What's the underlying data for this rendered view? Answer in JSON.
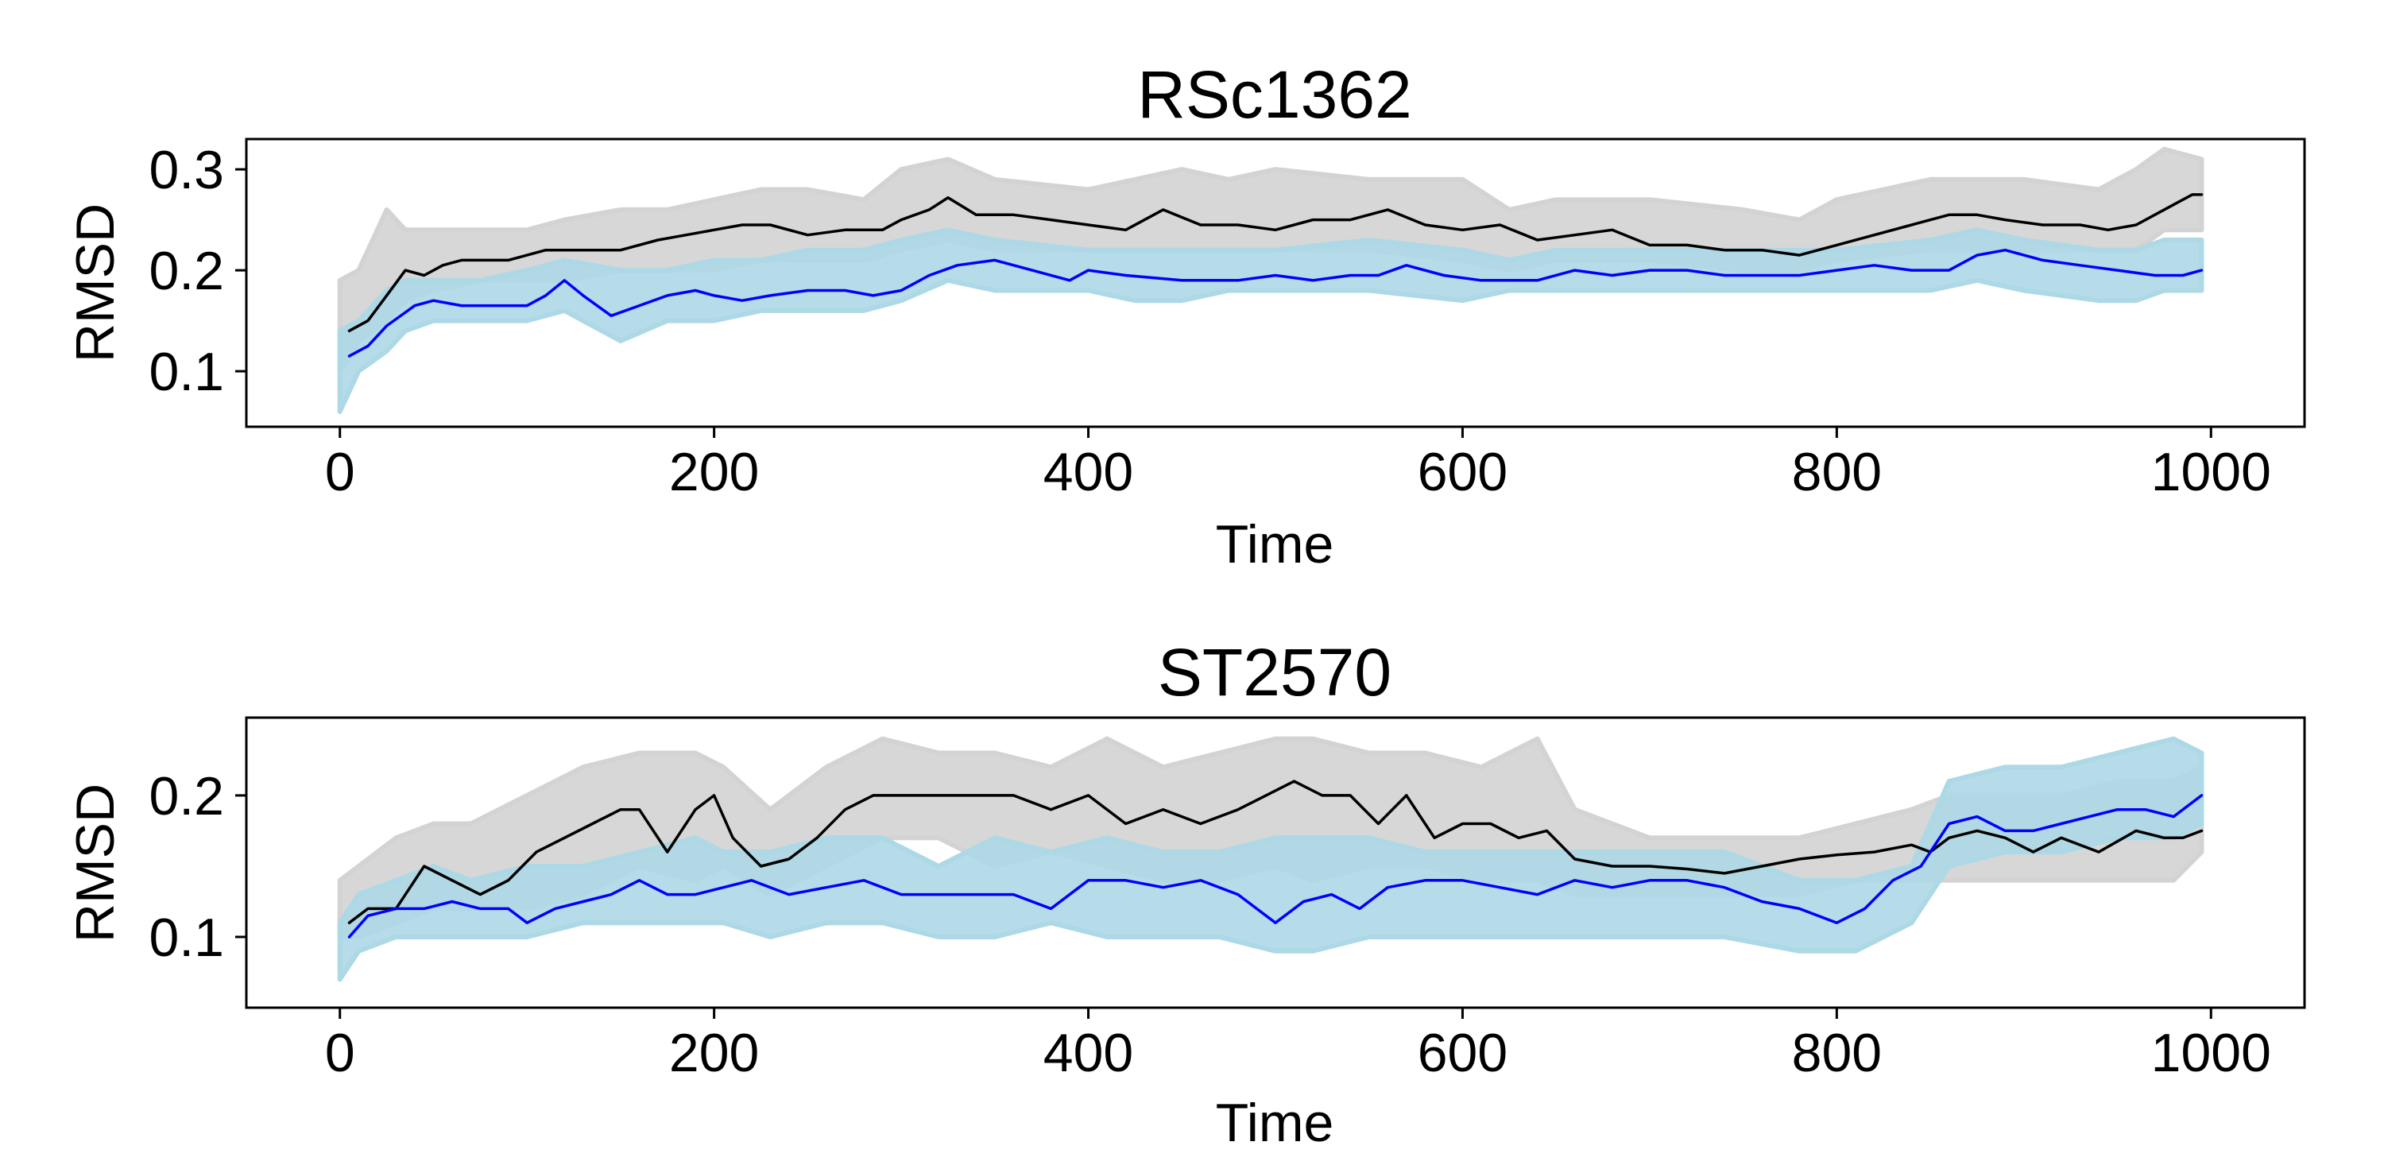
{
  "chart_data": [
    {
      "type": "line",
      "title": "RSc1362",
      "xlabel": "Time",
      "ylabel": "RMSD",
      "xlim": [
        -50,
        1050
      ],
      "ylim": [
        0.045,
        0.33
      ],
      "xticks": [
        0,
        200,
        400,
        600,
        800,
        1000
      ],
      "yticks": [
        0.1,
        0.2,
        0.3
      ],
      "xtick_labels": [
        "0",
        "200",
        "400",
        "600",
        "800",
        "1000"
      ],
      "ytick_labels": [
        "0.1",
        "0.2",
        "0.3"
      ],
      "grid": false,
      "series": [
        {
          "kind": "scatter-band",
          "color": "#d3d3d3",
          "x": [
            0,
            10,
            25,
            35,
            50,
            75,
            100,
            120,
            150,
            175,
            200,
            225,
            250,
            280,
            300,
            325,
            350,
            400,
            425,
            450,
            475,
            500,
            550,
            600,
            625,
            650,
            700,
            750,
            780,
            800,
            850,
            875,
            900,
            940,
            960,
            975,
            995
          ],
          "low": [
            0.1,
            0.13,
            0.15,
            0.17,
            0.18,
            0.19,
            0.19,
            0.19,
            0.2,
            0.2,
            0.2,
            0.21,
            0.21,
            0.21,
            0.22,
            0.23,
            0.22,
            0.22,
            0.22,
            0.22,
            0.22,
            0.22,
            0.22,
            0.21,
            0.2,
            0.21,
            0.21,
            0.2,
            0.2,
            0.21,
            0.22,
            0.22,
            0.22,
            0.22,
            0.22,
            0.24,
            0.24
          ],
          "high": [
            0.19,
            0.2,
            0.26,
            0.24,
            0.24,
            0.24,
            0.24,
            0.25,
            0.26,
            0.26,
            0.27,
            0.28,
            0.28,
            0.27,
            0.3,
            0.31,
            0.29,
            0.28,
            0.29,
            0.3,
            0.29,
            0.3,
            0.29,
            0.29,
            0.26,
            0.27,
            0.27,
            0.26,
            0.25,
            0.27,
            0.29,
            0.29,
            0.29,
            0.28,
            0.3,
            0.32,
            0.31
          ]
        },
        {
          "kind": "scatter-band",
          "color": "#add8e6",
          "x": [
            0,
            10,
            25,
            35,
            50,
            75,
            100,
            120,
            150,
            175,
            200,
            225,
            250,
            280,
            300,
            325,
            350,
            400,
            425,
            450,
            475,
            500,
            550,
            600,
            625,
            650,
            700,
            750,
            780,
            800,
            850,
            875,
            900,
            940,
            960,
            975,
            995
          ],
          "low": [
            0.06,
            0.1,
            0.12,
            0.14,
            0.15,
            0.15,
            0.15,
            0.16,
            0.13,
            0.15,
            0.15,
            0.16,
            0.16,
            0.16,
            0.17,
            0.19,
            0.18,
            0.18,
            0.17,
            0.17,
            0.18,
            0.18,
            0.18,
            0.17,
            0.18,
            0.18,
            0.18,
            0.18,
            0.18,
            0.18,
            0.18,
            0.19,
            0.18,
            0.17,
            0.17,
            0.18,
            0.18
          ],
          "high": [
            0.14,
            0.15,
            0.18,
            0.19,
            0.19,
            0.19,
            0.2,
            0.21,
            0.2,
            0.2,
            0.21,
            0.21,
            0.22,
            0.22,
            0.23,
            0.24,
            0.23,
            0.22,
            0.22,
            0.22,
            0.22,
            0.22,
            0.23,
            0.22,
            0.21,
            0.22,
            0.22,
            0.22,
            0.22,
            0.22,
            0.23,
            0.24,
            0.23,
            0.22,
            0.22,
            0.23,
            0.23
          ]
        },
        {
          "kind": "line",
          "color": "#000000",
          "x": [
            5,
            15,
            25,
            35,
            45,
            55,
            65,
            75,
            90,
            100,
            110,
            130,
            150,
            170,
            185,
            200,
            215,
            230,
            250,
            270,
            290,
            300,
            315,
            325,
            340,
            360,
            380,
            400,
            420,
            440,
            460,
            480,
            500,
            520,
            540,
            560,
            580,
            600,
            620,
            640,
            660,
            680,
            700,
            720,
            740,
            760,
            780,
            800,
            820,
            840,
            860,
            875,
            890,
            910,
            930,
            945,
            960,
            975,
            990,
            995
          ],
          "y": [
            0.14,
            0.15,
            0.175,
            0.2,
            0.195,
            0.205,
            0.21,
            0.21,
            0.21,
            0.215,
            0.22,
            0.22,
            0.22,
            0.23,
            0.235,
            0.24,
            0.245,
            0.245,
            0.235,
            0.24,
            0.24,
            0.25,
            0.26,
            0.272,
            0.255,
            0.255,
            0.25,
            0.245,
            0.24,
            0.26,
            0.245,
            0.245,
            0.24,
            0.25,
            0.25,
            0.26,
            0.245,
            0.24,
            0.245,
            0.23,
            0.235,
            0.24,
            0.225,
            0.225,
            0.22,
            0.22,
            0.215,
            0.225,
            0.235,
            0.245,
            0.255,
            0.255,
            0.25,
            0.245,
            0.245,
            0.24,
            0.245,
            0.26,
            0.275,
            0.275
          ]
        },
        {
          "kind": "line",
          "color": "#0000ff",
          "x": [
            5,
            15,
            25,
            40,
            50,
            65,
            80,
            100,
            110,
            120,
            130,
            145,
            160,
            175,
            190,
            200,
            215,
            230,
            250,
            270,
            285,
            300,
            315,
            330,
            350,
            370,
            390,
            400,
            420,
            450,
            480,
            500,
            520,
            540,
            555,
            570,
            590,
            610,
            640,
            660,
            680,
            700,
            720,
            740,
            760,
            780,
            800,
            820,
            840,
            860,
            875,
            890,
            910,
            930,
            950,
            970,
            985,
            995
          ],
          "y": [
            0.115,
            0.125,
            0.145,
            0.165,
            0.17,
            0.165,
            0.165,
            0.165,
            0.175,
            0.19,
            0.175,
            0.155,
            0.165,
            0.175,
            0.18,
            0.175,
            0.17,
            0.175,
            0.18,
            0.18,
            0.175,
            0.18,
            0.195,
            0.205,
            0.21,
            0.2,
            0.19,
            0.2,
            0.195,
            0.19,
            0.19,
            0.195,
            0.19,
            0.195,
            0.195,
            0.205,
            0.195,
            0.19,
            0.19,
            0.2,
            0.195,
            0.2,
            0.2,
            0.195,
            0.195,
            0.195,
            0.2,
            0.205,
            0.2,
            0.2,
            0.215,
            0.22,
            0.21,
            0.205,
            0.2,
            0.195,
            0.195,
            0.2
          ]
        }
      ]
    },
    {
      "type": "line",
      "title": "ST2570",
      "xlabel": "Time",
      "ylabel": "RMSD",
      "xlim": [
        -50,
        1050
      ],
      "ylim": [
        0.05,
        0.255
      ],
      "xticks": [
        0,
        200,
        400,
        600,
        800,
        1000
      ],
      "yticks": [
        0.1,
        0.2
      ],
      "xtick_labels": [
        "0",
        "200",
        "400",
        "600",
        "800",
        "1000"
      ],
      "ytick_labels": [
        "0.1",
        "0.2"
      ],
      "grid": false,
      "series": [
        {
          "kind": "scatter-band",
          "color": "#d3d3d3",
          "x": [
            0,
            10,
            30,
            50,
            70,
            100,
            130,
            160,
            190,
            205,
            230,
            260,
            290,
            320,
            350,
            380,
            410,
            440,
            470,
            500,
            520,
            550,
            580,
            610,
            640,
            660,
            700,
            740,
            780,
            810,
            840,
            860,
            890,
            920,
            950,
            980,
            995
          ],
          "low": [
            0.1,
            0.1,
            0.11,
            0.12,
            0.12,
            0.12,
            0.13,
            0.15,
            0.14,
            0.15,
            0.13,
            0.15,
            0.17,
            0.17,
            0.15,
            0.16,
            0.15,
            0.14,
            0.14,
            0.15,
            0.14,
            0.15,
            0.15,
            0.14,
            0.14,
            0.13,
            0.13,
            0.13,
            0.13,
            0.14,
            0.14,
            0.14,
            0.14,
            0.14,
            0.14,
            0.14,
            0.16
          ],
          "high": [
            0.14,
            0.15,
            0.17,
            0.18,
            0.18,
            0.2,
            0.22,
            0.23,
            0.23,
            0.22,
            0.19,
            0.22,
            0.24,
            0.23,
            0.23,
            0.22,
            0.24,
            0.22,
            0.23,
            0.24,
            0.24,
            0.23,
            0.23,
            0.22,
            0.24,
            0.19,
            0.17,
            0.17,
            0.17,
            0.18,
            0.19,
            0.2,
            0.2,
            0.2,
            0.21,
            0.21,
            0.22
          ]
        },
        {
          "kind": "scatter-band",
          "color": "#add8e6",
          "x": [
            0,
            10,
            30,
            50,
            70,
            100,
            130,
            160,
            190,
            205,
            230,
            260,
            290,
            320,
            350,
            380,
            410,
            440,
            470,
            500,
            520,
            550,
            580,
            610,
            640,
            660,
            700,
            740,
            780,
            810,
            840,
            860,
            890,
            920,
            950,
            980,
            995
          ],
          "low": [
            0.07,
            0.09,
            0.1,
            0.1,
            0.1,
            0.1,
            0.11,
            0.11,
            0.11,
            0.11,
            0.1,
            0.11,
            0.11,
            0.1,
            0.1,
            0.11,
            0.1,
            0.1,
            0.1,
            0.09,
            0.09,
            0.1,
            0.1,
            0.1,
            0.1,
            0.1,
            0.1,
            0.1,
            0.09,
            0.09,
            0.11,
            0.15,
            0.16,
            0.16,
            0.17,
            0.17,
            0.18
          ],
          "high": [
            0.11,
            0.13,
            0.14,
            0.15,
            0.14,
            0.15,
            0.15,
            0.16,
            0.17,
            0.16,
            0.16,
            0.17,
            0.17,
            0.15,
            0.17,
            0.16,
            0.17,
            0.16,
            0.16,
            0.17,
            0.17,
            0.17,
            0.16,
            0.16,
            0.16,
            0.16,
            0.16,
            0.16,
            0.14,
            0.14,
            0.15,
            0.21,
            0.22,
            0.22,
            0.23,
            0.24,
            0.23
          ]
        },
        {
          "kind": "line",
          "color": "#000000",
          "x": [
            5,
            15,
            30,
            45,
            60,
            75,
            90,
            105,
            120,
            135,
            150,
            160,
            175,
            190,
            200,
            210,
            225,
            240,
            255,
            270,
            285,
            300,
            320,
            340,
            360,
            380,
            400,
            420,
            440,
            460,
            480,
            495,
            510,
            525,
            540,
            555,
            570,
            585,
            600,
            615,
            630,
            645,
            660,
            680,
            700,
            720,
            740,
            760,
            780,
            800,
            820,
            840,
            850,
            860,
            875,
            890,
            905,
            920,
            940,
            960,
            975,
            985,
            995
          ],
          "y": [
            0.11,
            0.12,
            0.12,
            0.15,
            0.14,
            0.13,
            0.14,
            0.16,
            0.17,
            0.18,
            0.19,
            0.19,
            0.16,
            0.19,
            0.2,
            0.17,
            0.15,
            0.155,
            0.17,
            0.19,
            0.2,
            0.2,
            0.2,
            0.2,
            0.2,
            0.19,
            0.2,
            0.18,
            0.19,
            0.18,
            0.19,
            0.2,
            0.21,
            0.2,
            0.2,
            0.18,
            0.2,
            0.17,
            0.18,
            0.18,
            0.17,
            0.175,
            0.155,
            0.15,
            0.15,
            0.148,
            0.145,
            0.15,
            0.155,
            0.158,
            0.16,
            0.165,
            0.16,
            0.17,
            0.175,
            0.17,
            0.16,
            0.17,
            0.16,
            0.175,
            0.17,
            0.17,
            0.175
          ]
        },
        {
          "kind": "line",
          "color": "#0000ff",
          "x": [
            5,
            15,
            30,
            45,
            60,
            75,
            90,
            100,
            115,
            130,
            145,
            160,
            175,
            190,
            205,
            220,
            240,
            260,
            280,
            300,
            320,
            340,
            360,
            380,
            400,
            420,
            440,
            460,
            480,
            500,
            515,
            530,
            545,
            560,
            580,
            600,
            620,
            640,
            660,
            680,
            700,
            720,
            740,
            760,
            780,
            800,
            815,
            830,
            845,
            860,
            875,
            890,
            905,
            920,
            935,
            950,
            965,
            980,
            995
          ],
          "y": [
            0.1,
            0.115,
            0.12,
            0.12,
            0.125,
            0.12,
            0.12,
            0.11,
            0.12,
            0.125,
            0.13,
            0.14,
            0.13,
            0.13,
            0.135,
            0.14,
            0.13,
            0.135,
            0.14,
            0.13,
            0.13,
            0.13,
            0.13,
            0.12,
            0.14,
            0.14,
            0.135,
            0.14,
            0.13,
            0.11,
            0.125,
            0.13,
            0.12,
            0.135,
            0.14,
            0.14,
            0.135,
            0.13,
            0.14,
            0.135,
            0.14,
            0.14,
            0.135,
            0.125,
            0.12,
            0.11,
            0.12,
            0.14,
            0.15,
            0.18,
            0.185,
            0.175,
            0.175,
            0.18,
            0.185,
            0.19,
            0.19,
            0.185,
            0.2
          ]
        }
      ]
    }
  ]
}
